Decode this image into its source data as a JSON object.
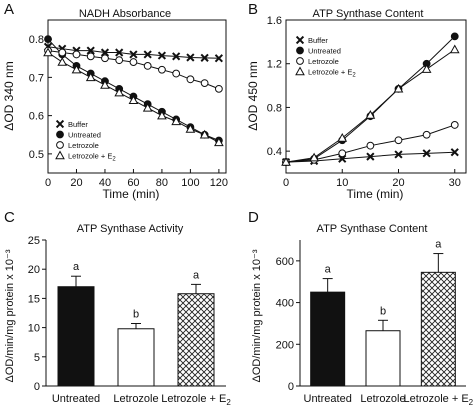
{
  "chart_data": [
    {
      "panel": "A",
      "type": "line",
      "title": "NADH Absorbance",
      "xlabel": "Time (min)",
      "ylabel": "ΔOD 340 nm",
      "xlim": [
        0,
        125
      ],
      "ylim": [
        0.45,
        0.85
      ],
      "xticks": [
        "0",
        "20",
        "40",
        "60",
        "80",
        "100",
        "120"
      ],
      "yticks": [
        "0.5",
        "0.6",
        "0.7",
        "0.8"
      ],
      "legend_position": "bottom-left",
      "series": [
        {
          "name": "Buffer",
          "marker": "x",
          "x": [
            0,
            10,
            20,
            30,
            40,
            50,
            60,
            70,
            80,
            90,
            100,
            110,
            120
          ],
          "y": [
            0.78,
            0.775,
            0.77,
            0.77,
            0.765,
            0.765,
            0.76,
            0.76,
            0.757,
            0.755,
            0.752,
            0.751,
            0.75
          ]
        },
        {
          "name": "Untreated",
          "marker": "filled-circle",
          "x": [
            0,
            10,
            20,
            30,
            40,
            50,
            60,
            70,
            80,
            90,
            100,
            110,
            120
          ],
          "y": [
            0.8,
            0.76,
            0.73,
            0.71,
            0.69,
            0.67,
            0.65,
            0.63,
            0.61,
            0.59,
            0.57,
            0.55,
            0.535
          ]
        },
        {
          "name": "Letrozole",
          "marker": "open-circle",
          "x": [
            0,
            10,
            20,
            30,
            40,
            50,
            60,
            70,
            80,
            90,
            100,
            110,
            120
          ],
          "y": [
            0.77,
            0.765,
            0.76,
            0.755,
            0.75,
            0.745,
            0.74,
            0.73,
            0.72,
            0.71,
            0.695,
            0.685,
            0.67
          ]
        },
        {
          "name": "Letrozole + E2",
          "marker": "open-triangle",
          "x": [
            0,
            10,
            20,
            30,
            40,
            50,
            60,
            70,
            80,
            90,
            100,
            110,
            120
          ],
          "y": [
            0.765,
            0.74,
            0.72,
            0.7,
            0.68,
            0.66,
            0.64,
            0.62,
            0.6,
            0.585,
            0.565,
            0.55,
            0.53
          ]
        }
      ]
    },
    {
      "panel": "B",
      "type": "line",
      "title": "ATP Synthase Content",
      "xlabel": "Time (min)",
      "ylabel": "ΔOD 450 nm",
      "xlim": [
        0,
        32
      ],
      "ylim": [
        0.2,
        1.6
      ],
      "xticks": [
        "0",
        "10",
        "20",
        "30"
      ],
      "yticks": [
        "0.4",
        "0.8",
        "1.2",
        "1.6"
      ],
      "legend_position": "top-left",
      "series": [
        {
          "name": "Buffer",
          "marker": "x",
          "x": [
            0,
            5,
            10,
            15,
            20,
            25,
            30
          ],
          "y": [
            0.3,
            0.31,
            0.33,
            0.35,
            0.37,
            0.38,
            0.39
          ]
        },
        {
          "name": "Untreated",
          "marker": "filled-circle",
          "x": [
            0,
            5,
            10,
            15,
            20,
            25,
            30
          ],
          "y": [
            0.3,
            0.33,
            0.5,
            0.72,
            0.97,
            1.2,
            1.45
          ]
        },
        {
          "name": "Letrozole",
          "marker": "open-circle",
          "x": [
            0,
            5,
            10,
            15,
            20,
            25,
            30
          ],
          "y": [
            0.3,
            0.32,
            0.38,
            0.45,
            0.5,
            0.55,
            0.64
          ]
        },
        {
          "name": "Letrozole + E2",
          "marker": "open-triangle",
          "x": [
            0,
            5,
            10,
            15,
            20,
            25,
            30
          ],
          "y": [
            0.3,
            0.34,
            0.52,
            0.73,
            0.97,
            1.15,
            1.33
          ]
        }
      ]
    },
    {
      "panel": "C",
      "type": "bar",
      "title": "ATP Synthase Activity",
      "ylabel": "ΔOD/min/mg protein x 10⁻³",
      "ylim": [
        0,
        25
      ],
      "yticks": [
        "0",
        "5",
        "10",
        "15",
        "20",
        "25"
      ],
      "categories": [
        "Untreated",
        "Letrozole",
        "Letrozole + E2"
      ],
      "values": [
        17,
        9.8,
        15.8
      ],
      "errors": [
        1.8,
        0.9,
        1.6
      ],
      "letters": [
        "a",
        "b",
        "a"
      ],
      "fills": [
        "solid-black",
        "white",
        "crosshatch"
      ]
    },
    {
      "panel": "D",
      "type": "bar",
      "title": "ATP Synthase Content",
      "ylabel": "ΔOD/min/mg protein x 10⁻³",
      "ylim": [
        0,
        700
      ],
      "yticks": [
        "0",
        "200",
        "400",
        "600"
      ],
      "categories": [
        "Untreated",
        "Letrozole",
        "Letrozole + E2"
      ],
      "values": [
        450,
        265,
        545
      ],
      "errors": [
        65,
        50,
        90
      ],
      "letters": [
        "a",
        "b",
        "a"
      ],
      "fills": [
        "solid-black",
        "white",
        "crosshatch"
      ]
    }
  ]
}
